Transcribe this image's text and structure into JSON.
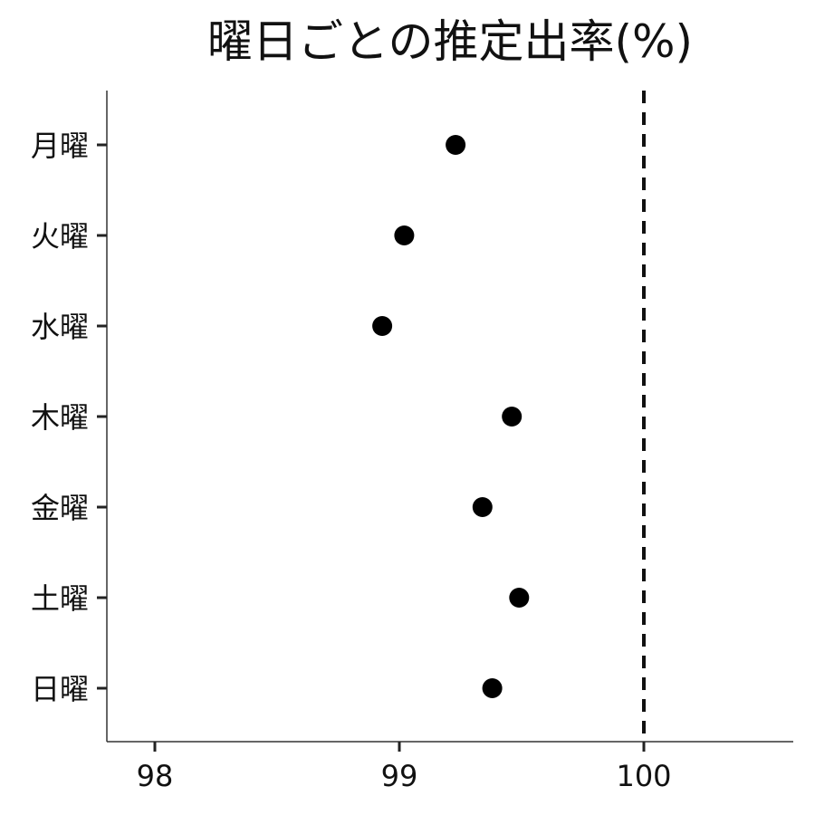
{
  "chart_data": {
    "type": "scatter",
    "title": "曜日ごとの推定出率(%)",
    "xlabel": "",
    "ylabel": "",
    "xlim": [
      97.8,
      100.6
    ],
    "x_ticks": [
      98,
      99,
      100
    ],
    "x_tick_labels": [
      "98",
      "99",
      "100"
    ],
    "categories": [
      "月曜",
      "火曜",
      "水曜",
      "木曜",
      "金曜",
      "土曜",
      "日曜"
    ],
    "values": [
      99.23,
      99.02,
      98.93,
      99.46,
      99.34,
      99.49,
      99.38
    ],
    "reference_line": {
      "x": 100,
      "style": "dashed"
    },
    "grid": false,
    "legend": "none",
    "point_color": "#000000",
    "axis_color": "#333333"
  }
}
